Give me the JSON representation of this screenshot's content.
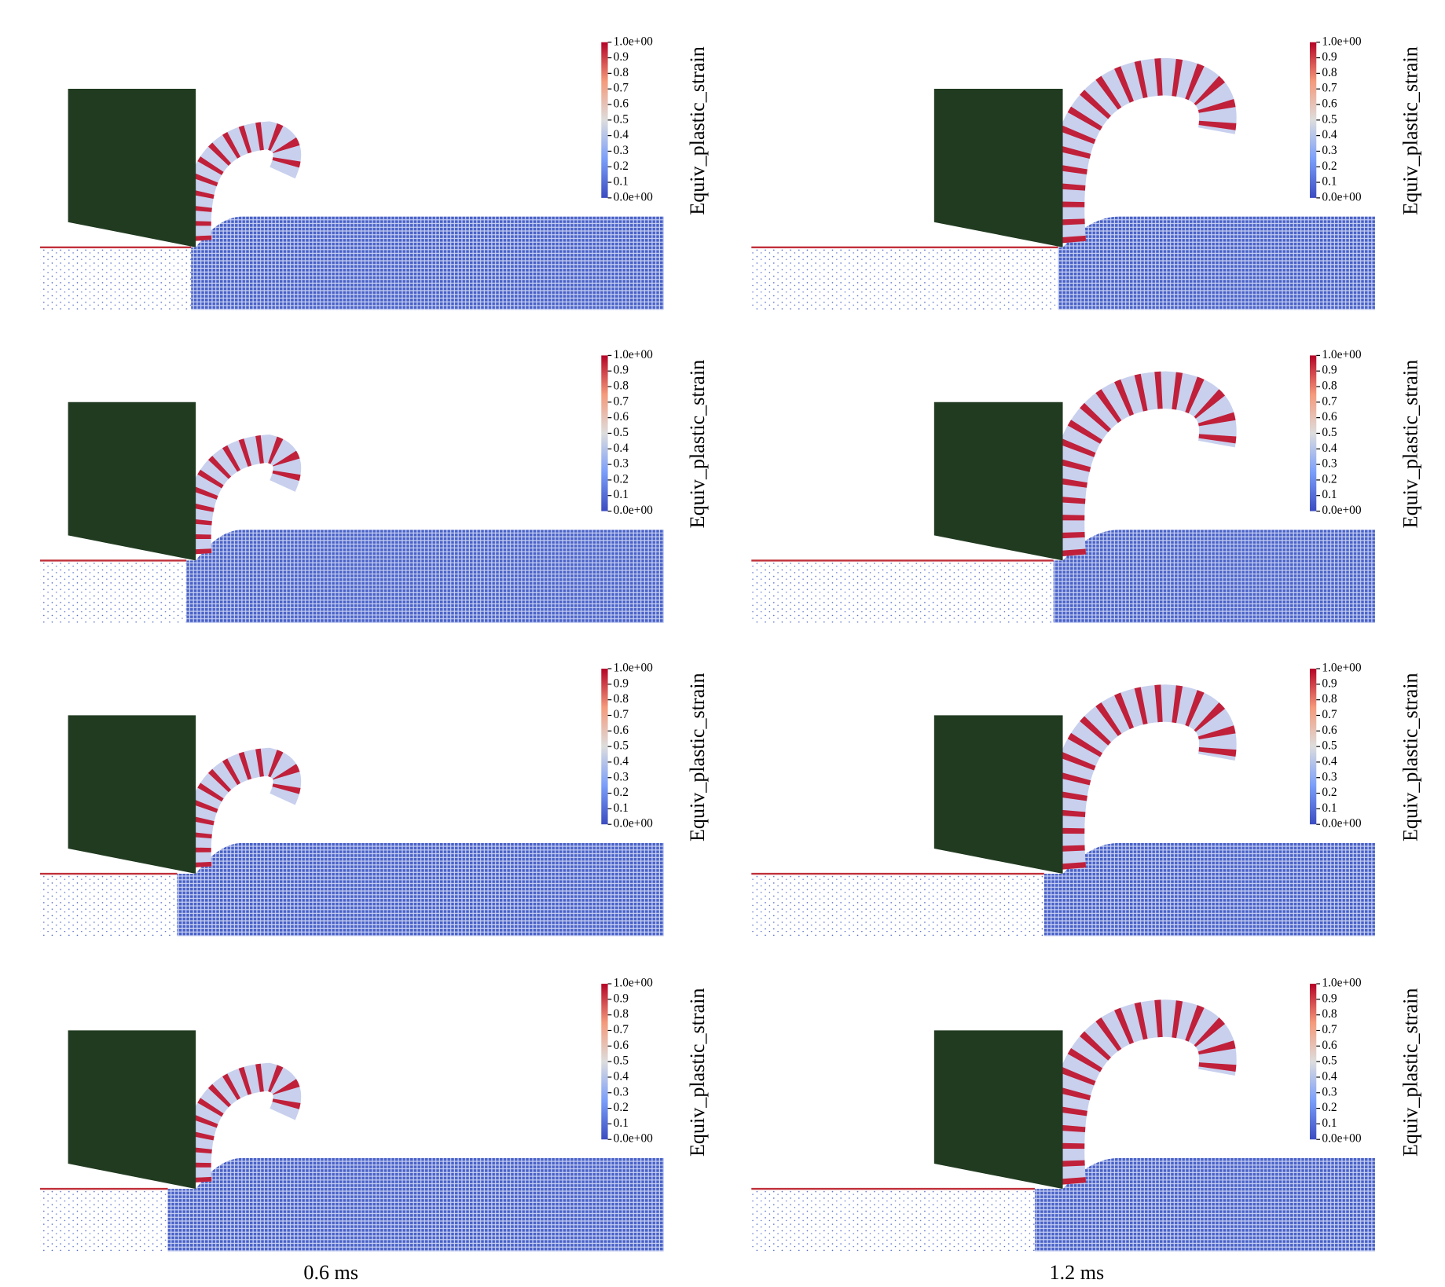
{
  "panels": [
    {
      "colorbar": {
        "title": "Equiv_plastic_strain",
        "ticks": [
          {
            "value": 0,
            "label": "0.0e+00"
          },
          0.1,
          0.2,
          0.3,
          0.4,
          0.5,
          0.6,
          0.7,
          0.8,
          0.9,
          {
            "value": 1,
            "label": "1.0e+00"
          }
        ]
      }
    },
    {
      "colorbar": {
        "title": "Equiv_plastic_strain",
        "ticks": [
          {
            "value": 0,
            "label": "0.0e+00"
          },
          0.1,
          0.2,
          0.3,
          0.4,
          0.5,
          0.6,
          0.7,
          0.8,
          0.9,
          {
            "value": 1,
            "label": "1.0e+00"
          }
        ]
      }
    },
    {
      "colorbar": {
        "title": "Equiv_plastic_strain",
        "ticks": [
          {
            "value": 0,
            "label": "0.0e+00"
          },
          0.1,
          0.2,
          0.3,
          0.4,
          0.5,
          0.6,
          0.7,
          0.8,
          0.9,
          {
            "value": 1,
            "label": "1.0e+00"
          }
        ]
      }
    },
    {
      "colorbar": {
        "title": "Equiv_plastic_strain",
        "ticks": [
          {
            "value": 0,
            "label": "0.0e+00"
          },
          0.1,
          0.2,
          0.3,
          0.4,
          0.5,
          0.6,
          0.7,
          0.8,
          0.9,
          {
            "value": 1,
            "label": "1.0e+00"
          }
        ]
      }
    },
    {
      "colorbar": {
        "title": "Equiv_plastic_strain",
        "ticks": [
          {
            "value": 0,
            "label": "0.0e+00"
          },
          0.1,
          0.2,
          0.3,
          0.4,
          0.5,
          0.6,
          0.7,
          0.8,
          0.9,
          {
            "value": 1,
            "label": "1.0e+00"
          }
        ]
      }
    },
    {
      "colorbar": {
        "title": "Equiv_plastic_strain",
        "ticks": [
          {
            "value": 0,
            "label": "0.0e+00"
          },
          0.1,
          0.2,
          0.3,
          0.4,
          0.5,
          0.6,
          0.7,
          0.8,
          0.9,
          {
            "value": 1,
            "label": "1.0e+00"
          }
        ]
      }
    },
    {
      "colorbar": {
        "title": "Equiv_plastic_strain",
        "ticks": [
          {
            "value": 0,
            "label": "0.0e+00"
          },
          0.1,
          0.2,
          0.3,
          0.4,
          0.5,
          0.6,
          0.7,
          0.8,
          0.9,
          {
            "value": 1,
            "label": "1.0e+00"
          }
        ]
      }
    },
    {
      "colorbar": {
        "title": "Equiv_plastic_strain",
        "ticks": [
          {
            "value": 0,
            "label": "0.0e+00"
          },
          0.1,
          0.2,
          0.3,
          0.4,
          0.5,
          0.6,
          0.7,
          0.8,
          0.9,
          {
            "value": 1,
            "label": "1.0e+00"
          }
        ]
      }
    }
  ],
  "column_labels": [
    "0.6 ms",
    "1.2 ms"
  ]
}
